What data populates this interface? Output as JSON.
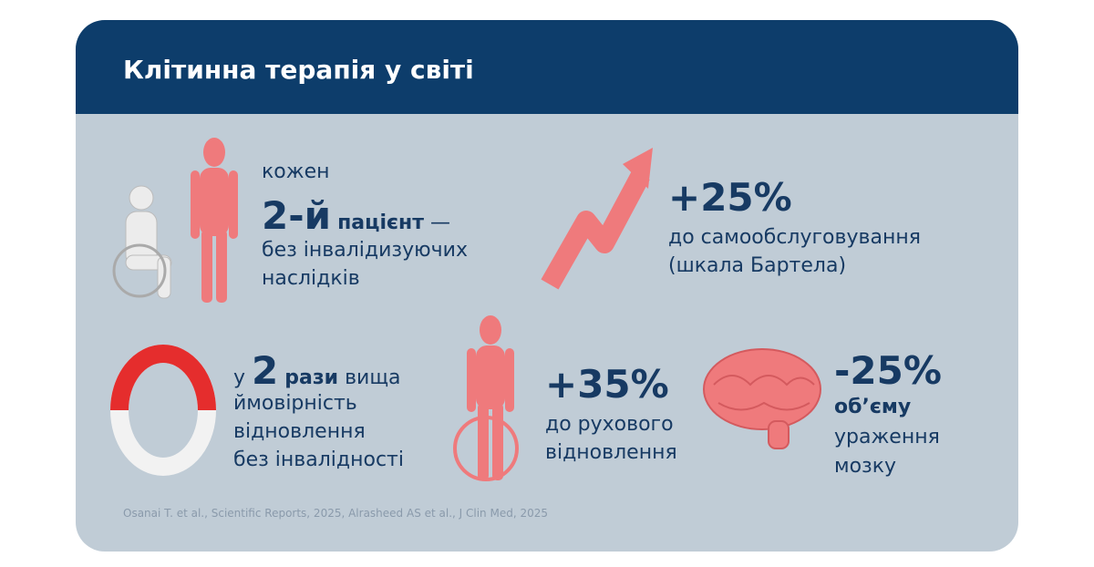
{
  "header": {
    "title": "Клітинна терапія у світі"
  },
  "stats": [
    {
      "line1": "кожен",
      "highlight": "2-й",
      "bold": "пацієнт",
      "rest": "—",
      "line3": "без інвалідизуючих",
      "line4": "наслідків"
    },
    {
      "value": "+25%",
      "line1": "до самообслуговування",
      "line2": "(шкала Бартела)"
    },
    {
      "prefix": "у",
      "highlight": "2",
      "bold": "рази",
      "rest": "вища",
      "line2": "ймовірність",
      "line3": "відновлення",
      "line4": "без інвалідності"
    },
    {
      "value": "+35%",
      "line1": "до рухового",
      "line2": "відновлення"
    },
    {
      "value": "-25%",
      "bold": "об’єму",
      "line1": "ураження",
      "line2": "мозку"
    }
  ],
  "footer": {
    "source": "Osanai T. et al., Scientific Reports, 2025, Alrasheed AS et al., J Clin Med, 2025"
  }
}
